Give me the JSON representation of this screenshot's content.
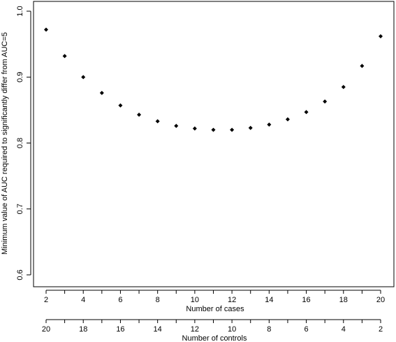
{
  "chart_data": {
    "type": "scatter",
    "title": "",
    "xlabel": "Number of cases",
    "x2label": "Number of controls",
    "ylabel": "Minimum value of AUC required to significantly differ from AUC=5",
    "xlim": [
      2,
      20
    ],
    "ylim": [
      0.6,
      1.0
    ],
    "xticks": [
      2,
      4,
      6,
      8,
      10,
      12,
      14,
      16,
      18,
      20
    ],
    "x2ticks": [
      20,
      18,
      16,
      14,
      12,
      10,
      8,
      6,
      4,
      2
    ],
    "yticks": [
      0.6,
      0.7,
      0.8,
      0.9,
      1.0
    ],
    "ytick_labels": [
      "0.6",
      "0.7",
      "0.8",
      "0.9",
      "1.0"
    ],
    "grid": false,
    "marker": "diamond",
    "x": [
      2,
      3,
      4,
      5,
      6,
      7,
      8,
      9,
      10,
      11,
      12,
      13,
      14,
      15,
      16,
      17,
      18,
      19,
      20
    ],
    "y": [
      0.972,
      0.932,
      0.9,
      0.876,
      0.857,
      0.843,
      0.833,
      0.826,
      0.822,
      0.82,
      0.82,
      0.823,
      0.828,
      0.836,
      0.847,
      0.863,
      0.885,
      0.917,
      0.962
    ]
  }
}
